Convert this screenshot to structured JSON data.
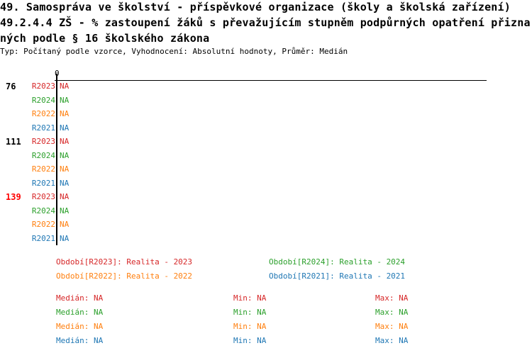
{
  "header": {
    "title_lines": [
      "49. Samospráva ve školství - příspěvkové organizace (školy a školská zařízení)",
      "49.2.4.4 ZŠ - % zastoupení žáků s převažujícím stupněm podpůrných opatření přizna",
      "ných podle § 16 školského zákona"
    ],
    "subtitle": "Typ: Počítaný podle vzorce, Vyhodnocení: Absolutní hodnoty, Průměr: Medián"
  },
  "colors": {
    "R2023": "#d62728",
    "R2024": "#2ca02c",
    "R2022": "#ff7f0e",
    "R2021": "#1f77b4"
  },
  "chart_data": {
    "type": "bar",
    "orientation": "horizontal",
    "x_tick_labels": [
      "0"
    ],
    "groups": [
      {
        "label": "76",
        "highlight": false,
        "bars": [
          {
            "series": "R2023",
            "value": "NA"
          },
          {
            "series": "R2024",
            "value": "NA"
          },
          {
            "series": "R2022",
            "value": "NA"
          },
          {
            "series": "R2021",
            "value": "NA"
          }
        ]
      },
      {
        "label": "111",
        "highlight": false,
        "bars": [
          {
            "series": "R2023",
            "value": "NA"
          },
          {
            "series": "R2024",
            "value": "NA"
          },
          {
            "series": "R2022",
            "value": "NA"
          },
          {
            "series": "R2021",
            "value": "NA"
          }
        ]
      },
      {
        "label": "139",
        "highlight": true,
        "highlight_color": "#ff0000",
        "bars": [
          {
            "series": "R2023",
            "value": "NA"
          },
          {
            "series": "R2024",
            "value": "NA"
          },
          {
            "series": "R2022",
            "value": "NA"
          },
          {
            "series": "R2021",
            "value": "NA"
          }
        ]
      }
    ],
    "legend": [
      {
        "series": "R2023",
        "text": "Období[R2023]: Realita - 2023"
      },
      {
        "series": "R2024",
        "text": "Období[R2024]: Realita - 2024"
      },
      {
        "series": "R2022",
        "text": "Období[R2022]: Realita - 2022"
      },
      {
        "series": "R2021",
        "text": "Období[R2021]: Realita - 2021"
      }
    ],
    "stats": [
      {
        "series": "R2023",
        "median": "Medián: NA",
        "min": "Min: NA",
        "max": "Max: NA"
      },
      {
        "series": "R2024",
        "median": "Medián: NA",
        "min": "Min: NA",
        "max": "Max: NA"
      },
      {
        "series": "R2022",
        "median": "Medián: NA",
        "min": "Min: NA",
        "max": "Max: NA"
      },
      {
        "series": "R2021",
        "median": "Medián: NA",
        "min": "Min: NA",
        "max": "Max: NA"
      }
    ]
  }
}
